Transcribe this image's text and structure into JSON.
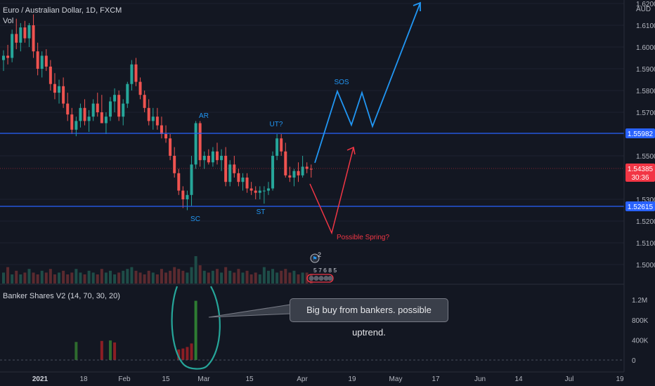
{
  "header": {
    "symbol_title": "Euro / Australian Dollar, 1D, FXCM",
    "volume_label": "Vol",
    "indicator_title": "Banker Shares V2 (14, 70, 30, 20)"
  },
  "price_axis": {
    "currency": "AUD",
    "ticks": [
      "1.62000",
      "1.61000",
      "1.60000",
      "1.59000",
      "1.58000",
      "1.57000",
      "1.55000",
      "1.53000",
      "1.52000",
      "1.51000",
      "1.50000"
    ],
    "labels": [
      {
        "text": "1.55982",
        "color": "#2962ff"
      },
      {
        "text": "1.54385",
        "color": "#f23645"
      },
      {
        "text": "30:36",
        "color": "#f23645"
      },
      {
        "text": "1.52615",
        "color": "#2962ff"
      }
    ]
  },
  "indicator_axis": {
    "ticks": [
      "1.2M",
      "800K",
      "400K",
      "0"
    ]
  },
  "time_axis": {
    "ticks": [
      "2021",
      "18",
      "Feb",
      "15",
      "Mar",
      "15",
      "Apr",
      "19",
      "May",
      "17",
      "Jun",
      "14",
      "Jul",
      "19"
    ]
  },
  "annotations": {
    "ar": "AR",
    "sc": "SC",
    "st": "ST",
    "ut": "UT?",
    "sos": "SOS",
    "spring": "Possible Spring?",
    "badge_count": "2",
    "badge_nums": "5 7 6 8 5",
    "callout": "Big buy from bankers. possible uptrend."
  },
  "colors": {
    "background": "#131722",
    "bull": "#26a69a",
    "bear": "#ef5350",
    "blue_line": "#2962ff",
    "sos_path": "#2196f3",
    "spring_path": "#f23645",
    "ellipse": "#26a69a"
  },
  "chart_data": {
    "type": "candlestick",
    "symbol": "EURAUD",
    "timeframe": "1D",
    "ylim": [
      1.495,
      1.623
    ],
    "horizontal_levels": [
      1.55982,
      1.52615
    ],
    "last_price": 1.54385,
    "ohlc": [
      [
        1.594,
        1.5985,
        1.589,
        1.596
      ],
      [
        1.596,
        1.601,
        1.592,
        1.595
      ],
      [
        1.595,
        1.608,
        1.593,
        1.606
      ],
      [
        1.606,
        1.613,
        1.599,
        1.602
      ],
      [
        1.602,
        1.611,
        1.598,
        1.609
      ],
      [
        1.609,
        1.612,
        1.602,
        1.604
      ],
      [
        1.604,
        1.611,
        1.6,
        1.61
      ],
      [
        1.61,
        1.615,
        1.595,
        1.598
      ],
      [
        1.598,
        1.602,
        1.587,
        1.59
      ],
      [
        1.59,
        1.598,
        1.586,
        1.596
      ],
      [
        1.596,
        1.599,
        1.589,
        1.591
      ],
      [
        1.591,
        1.594,
        1.58,
        1.583
      ],
      [
        1.583,
        1.588,
        1.576,
        1.579
      ],
      [
        1.579,
        1.585,
        1.574,
        1.582
      ],
      [
        1.582,
        1.586,
        1.572,
        1.574
      ],
      [
        1.574,
        1.579,
        1.566,
        1.569
      ],
      [
        1.569,
        1.572,
        1.56,
        1.562
      ],
      [
        1.562,
        1.568,
        1.559,
        1.566
      ],
      [
        1.566,
        1.574,
        1.563,
        1.572
      ],
      [
        1.572,
        1.576,
        1.564,
        1.566
      ],
      [
        1.566,
        1.571,
        1.561,
        1.568
      ],
      [
        1.568,
        1.576,
        1.566,
        1.574
      ],
      [
        1.574,
        1.579,
        1.568,
        1.57
      ],
      [
        1.57,
        1.578,
        1.565,
        1.565
      ],
      [
        1.565,
        1.57,
        1.56,
        1.568
      ],
      [
        1.568,
        1.577,
        1.566,
        1.575
      ],
      [
        1.575,
        1.581,
        1.57,
        1.578
      ],
      [
        1.578,
        1.58,
        1.566,
        1.568
      ],
      [
        1.568,
        1.576,
        1.564,
        1.574
      ],
      [
        1.574,
        1.584,
        1.572,
        1.583
      ],
      [
        1.583,
        1.594,
        1.58,
        1.592
      ],
      [
        1.592,
        1.595,
        1.582,
        1.584
      ],
      [
        1.584,
        1.586,
        1.576,
        1.578
      ],
      [
        1.578,
        1.58,
        1.57,
        1.572
      ],
      [
        1.572,
        1.576,
        1.564,
        1.566
      ],
      [
        1.566,
        1.572,
        1.562,
        1.568
      ],
      [
        1.568,
        1.572,
        1.562,
        1.564
      ],
      [
        1.564,
        1.568,
        1.558,
        1.56
      ],
      [
        1.56,
        1.564,
        1.556,
        1.558
      ],
      [
        1.558,
        1.56,
        1.548,
        1.55
      ],
      [
        1.55,
        1.554,
        1.54,
        1.542
      ],
      [
        1.542,
        1.544,
        1.532,
        1.534
      ],
      [
        1.534,
        1.536,
        1.526,
        1.53
      ],
      [
        1.53,
        1.534,
        1.525,
        1.532
      ],
      [
        1.532,
        1.55,
        1.527,
        1.546
      ],
      [
        1.546,
        1.566,
        1.544,
        1.565
      ],
      [
        1.565,
        1.566,
        1.545,
        1.548
      ],
      [
        1.548,
        1.552,
        1.544,
        1.55
      ],
      [
        1.55,
        1.553,
        1.546,
        1.547
      ],
      [
        1.547,
        1.554,
        1.545,
        1.552
      ],
      [
        1.552,
        1.556,
        1.546,
        1.548
      ],
      [
        1.548,
        1.553,
        1.543,
        1.55
      ],
      [
        1.55,
        1.554,
        1.536,
        1.538
      ],
      [
        1.538,
        1.548,
        1.536,
        1.546
      ],
      [
        1.546,
        1.55,
        1.54,
        1.542
      ],
      [
        1.542,
        1.544,
        1.536,
        1.538
      ],
      [
        1.538,
        1.542,
        1.534,
        1.54
      ],
      [
        1.54,
        1.542,
        1.533,
        1.535
      ],
      [
        1.535,
        1.538,
        1.532,
        1.534
      ],
      [
        1.534,
        1.536,
        1.53,
        1.533
      ],
      [
        1.533,
        1.536,
        1.53,
        1.534
      ],
      [
        1.534,
        1.536,
        1.528,
        1.534
      ],
      [
        1.534,
        1.538,
        1.532,
        1.535
      ],
      [
        1.535,
        1.552,
        1.534,
        1.55
      ],
      [
        1.55,
        1.56,
        1.548,
        1.558
      ],
      [
        1.558,
        1.56,
        1.55,
        1.552
      ],
      [
        1.552,
        1.556,
        1.54,
        1.541
      ],
      [
        1.541,
        1.545,
        1.538,
        1.54
      ],
      [
        1.54,
        1.544,
        1.536,
        1.543
      ],
      [
        1.543,
        1.547,
        1.538,
        1.541
      ],
      [
        1.541,
        1.55,
        1.54,
        1.545
      ],
      [
        1.545,
        1.547,
        1.542,
        1.544
      ],
      [
        1.544,
        1.546,
        1.54,
        1.5438
      ]
    ],
    "volume": [
      6,
      9,
      5,
      7,
      5,
      6,
      8,
      6,
      5,
      7,
      6,
      8,
      5,
      6,
      7,
      5,
      6,
      8,
      6,
      5,
      7,
      6,
      5,
      8,
      6,
      7,
      5,
      6,
      7,
      8,
      9,
      7,
      6,
      5,
      7,
      6,
      5,
      8,
      6,
      7,
      9,
      8,
      7,
      6,
      9,
      15,
      10,
      7,
      6,
      7,
      8,
      6,
      9,
      7,
      6,
      8,
      6,
      7,
      5,
      6,
      5,
      9,
      7,
      8,
      6,
      7,
      8,
      6,
      7,
      5,
      6,
      6,
      5
    ],
    "banker_shares": [
      0,
      0,
      0,
      0,
      0,
      0,
      0,
      0,
      0,
      0,
      0,
      0,
      0,
      0,
      0,
      0,
      0,
      360000,
      0,
      0,
      0,
      0,
      0,
      380000,
      0,
      390000,
      350000,
      0,
      0,
      0,
      0,
      0,
      0,
      0,
      0,
      0,
      0,
      0,
      0,
      0,
      0,
      210000,
      230000,
      260000,
      330000,
      1180000,
      0,
      0,
      0,
      0,
      0,
      0,
      0,
      0,
      0,
      0,
      0,
      0,
      0,
      0,
      0,
      0,
      0,
      0,
      0,
      0,
      0,
      0,
      0,
      0,
      0,
      0,
      0
    ],
    "indicator_ylim": [
      0,
      1300000
    ]
  }
}
